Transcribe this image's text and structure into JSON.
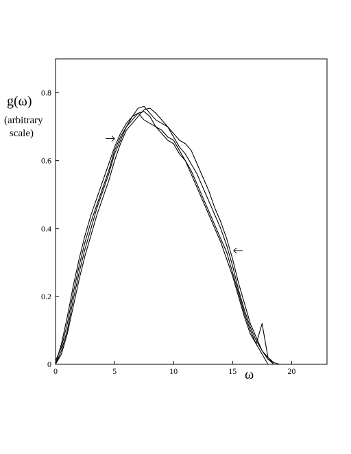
{
  "chart_data": {
    "type": "line",
    "title": "",
    "ylabel": "g(ω)",
    "ylabel_note": [
      "(arbitrary",
      "scale)"
    ],
    "xlabel": "ω",
    "xlim": [
      0,
      23
    ],
    "ylim": [
      0,
      0.9
    ],
    "xticks": [
      0,
      5,
      10,
      15,
      20
    ],
    "xtick_labels": [
      "0",
      "5",
      "10",
      "15",
      "20"
    ],
    "yticks": [
      0,
      0.2,
      0.4,
      0.6,
      0.8
    ],
    "ytick_labels": [
      "0",
      "0.2",
      "0.4",
      "0.6",
      "0.8"
    ],
    "grid": false,
    "legend": "none",
    "line_color": "#000000",
    "series": [
      {
        "x": [
          0,
          0.5,
          1,
          1.5,
          2,
          2.5,
          3,
          3.5,
          4,
          4.5,
          5,
          5.5,
          6,
          6.5,
          7,
          7.5,
          8,
          8.5,
          9,
          9.5,
          10,
          10.5,
          11,
          11.5,
          12,
          12.5,
          13,
          13.5,
          14,
          14.5,
          15,
          15.5,
          16,
          16.5,
          17,
          17.5,
          18,
          18.5
        ],
        "y": [
          0,
          0.03,
          0.09,
          0.17,
          0.25,
          0.32,
          0.38,
          0.44,
          0.49,
          0.54,
          0.6,
          0.65,
          0.69,
          0.71,
          0.73,
          0.75,
          0.755,
          0.74,
          0.72,
          0.7,
          0.67,
          0.64,
          0.62,
          0.59,
          0.56,
          0.52,
          0.48,
          0.44,
          0.4,
          0.35,
          0.29,
          0.22,
          0.16,
          0.11,
          0.07,
          0.04,
          0.015,
          0
        ]
      },
      {
        "x": [
          0,
          0.5,
          1,
          1.5,
          2,
          2.5,
          3,
          3.5,
          4,
          4.5,
          5,
          5.5,
          6,
          6.5,
          7,
          7.5,
          8,
          8.5,
          9,
          9.5,
          10,
          10.5,
          11,
          11.5,
          12,
          12.5,
          13,
          13.5,
          14,
          14.5,
          15,
          15.5,
          16,
          16.5,
          17,
          17.5,
          18
        ],
        "y": [
          0,
          0.04,
          0.1,
          0.19,
          0.27,
          0.34,
          0.4,
          0.46,
          0.51,
          0.56,
          0.62,
          0.66,
          0.7,
          0.72,
          0.74,
          0.745,
          0.73,
          0.7,
          0.69,
          0.67,
          0.66,
          0.63,
          0.6,
          0.57,
          0.53,
          0.49,
          0.45,
          0.41,
          0.37,
          0.33,
          0.27,
          0.21,
          0.15,
          0.1,
          0.06,
          0.03,
          0
        ]
      },
      {
        "x": [
          0,
          0.5,
          1,
          1.5,
          2,
          2.5,
          3,
          3.5,
          4,
          4.5,
          5,
          5.5,
          6,
          6.5,
          7,
          7.5,
          8,
          8.5,
          9,
          9.5,
          10,
          10.5,
          11,
          11.5,
          12,
          12.5,
          13,
          13.5,
          14,
          14.5,
          15,
          15.5,
          16,
          16.5,
          17,
          17.5,
          18,
          18.5,
          19
        ],
        "y": [
          0.01,
          0.05,
          0.12,
          0.21,
          0.29,
          0.36,
          0.42,
          0.47,
          0.52,
          0.57,
          0.63,
          0.67,
          0.7,
          0.73,
          0.755,
          0.76,
          0.74,
          0.72,
          0.71,
          0.7,
          0.68,
          0.66,
          0.65,
          0.63,
          0.59,
          0.55,
          0.51,
          0.46,
          0.42,
          0.37,
          0.31,
          0.24,
          0.18,
          0.12,
          0.08,
          0.04,
          0.02,
          0.005,
          0
        ]
      },
      {
        "x": [
          0,
          0.5,
          1,
          1.5,
          2,
          2.5,
          3,
          3.5,
          4,
          4.5,
          5,
          5.5,
          6,
          6.5,
          7,
          7.5,
          8,
          8.5,
          9,
          9.5,
          10,
          10.5,
          11,
          11.5,
          12,
          12.5,
          13,
          13.5,
          14,
          14.5,
          15,
          15.5,
          16,
          16.5,
          17,
          17.5,
          18,
          18.5
        ],
        "y": [
          0,
          0.06,
          0.14,
          0.23,
          0.31,
          0.38,
          0.44,
          0.49,
          0.54,
          0.59,
          0.64,
          0.68,
          0.71,
          0.73,
          0.74,
          0.72,
          0.71,
          0.7,
          0.68,
          0.66,
          0.65,
          0.62,
          0.6,
          0.56,
          0.52,
          0.48,
          0.44,
          0.4,
          0.36,
          0.31,
          0.26,
          0.2,
          0.14,
          0.09,
          0.06,
          0.12,
          0.02,
          0
        ]
      }
    ],
    "annotations": [
      {
        "type": "arrow",
        "points_to": "right",
        "x": 5.0,
        "y": 0.665
      },
      {
        "type": "arrow",
        "points_to": "left",
        "x": 15.1,
        "y": 0.335
      }
    ]
  }
}
